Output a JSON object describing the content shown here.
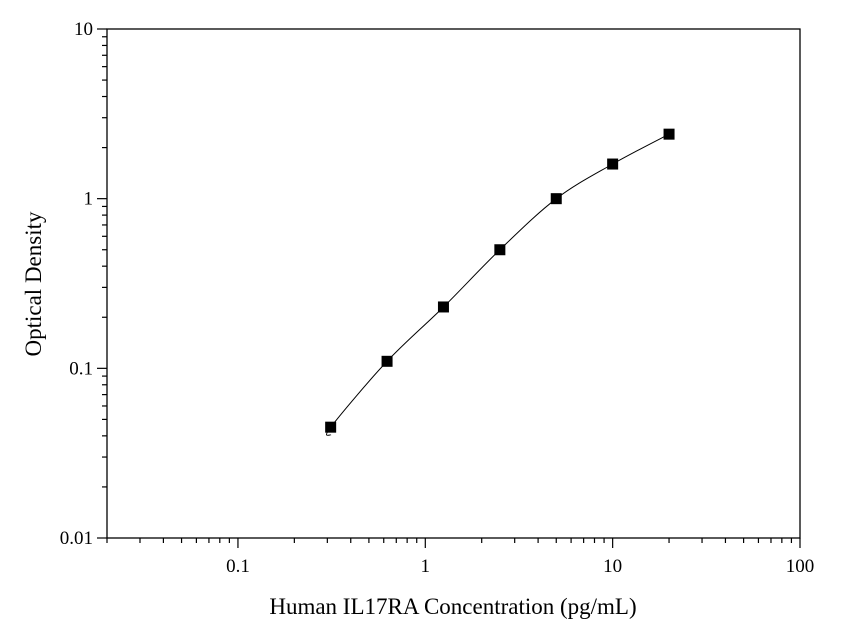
{
  "chart_data": {
    "type": "scatter",
    "title": "",
    "xlabel": "Human IL17RA Concentration (pg/mL)",
    "ylabel": "Optical Density",
    "xscale": "log",
    "yscale": "log",
    "xlim": [
      0.02,
      100
    ],
    "ylim": [
      0.01,
      10
    ],
    "x_ticks": [
      {
        "value": 0.1,
        "label": "0.1"
      },
      {
        "value": 1,
        "label": "1"
      },
      {
        "value": 10,
        "label": "10"
      },
      {
        "value": 100,
        "label": "100"
      }
    ],
    "y_ticks": [
      {
        "value": 0.01,
        "label": "0.01"
      },
      {
        "value": 0.1,
        "label": "0.1"
      },
      {
        "value": 1,
        "label": "1"
      },
      {
        "value": 10,
        "label": "10"
      }
    ],
    "grid": false,
    "legend": "none",
    "series": [
      {
        "x": [
          0.3125,
          0.625,
          1.25,
          2.5,
          5,
          10,
          20
        ],
        "y": [
          0.045,
          0.11,
          0.23,
          0.5,
          1.0,
          1.6,
          2.4
        ],
        "marker": "square",
        "fit_line": true
      }
    ],
    "colors": {
      "marker": "#000000",
      "line": "#000000",
      "axis": "#000000"
    }
  }
}
